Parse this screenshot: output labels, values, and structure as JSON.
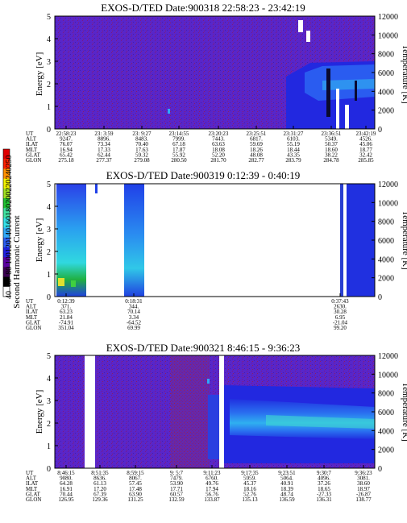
{
  "colorbar": {
    "label": "Second Harmonic Current",
    "ticks": [
      "40",
      "60",
      "80",
      "100",
      "120",
      "140",
      "160",
      "180",
      "200",
      "220",
      "240",
      "250"
    ],
    "colors": [
      "#ffffff",
      "#000000",
      "#3a0050",
      "#5a00a0",
      "#2020e0",
      "#2a5cf0",
      "#2fa8f8",
      "#33e0e8",
      "#40e0a0",
      "#20c030",
      "#a0e020",
      "#f0f000",
      "#ff9000",
      "#ff2000",
      "#e00000"
    ]
  },
  "panels": [
    {
      "title": "EXOS-D/TED   Date:900318   22:58:23 - 23:42:19",
      "ylabel_left": "Energy [eV]",
      "ylabel_right": "Temperature [K]",
      "ylim": [
        0,
        5
      ],
      "y_ticks": [
        "0",
        "1",
        "2",
        "3",
        "4",
        "5"
      ],
      "y2lim": [
        0,
        12000
      ],
      "y2_ticks": [
        "0",
        "2000",
        "4000",
        "6000",
        "8000",
        "10000",
        "12000"
      ],
      "orbit": {
        "row_labels": [
          "UT",
          "ALT",
          "ILAT",
          "MLT",
          "GLAT",
          "GLON"
        ],
        "columns": [
          [
            "22:58:23",
            "9247.",
            "76.07",
            "16.94",
            "65.42",
            "275.18"
          ],
          [
            "23: 3:59",
            "8896.",
            "73.34",
            "17.33",
            "62.44",
            "277.37"
          ],
          [
            "23: 9:27",
            "8483.",
            "70.40",
            "17.63",
            "59.32",
            "279.08"
          ],
          [
            "23:14:55",
            "7999.",
            "67.18",
            "17.87",
            "55.92",
            "280.50"
          ],
          [
            "23:20:23",
            "7443.",
            "63.63",
            "18.08",
            "52.20",
            "281.70"
          ],
          [
            "23:25:51",
            "6817.",
            "59.69",
            "18.26",
            "48.08",
            "282.77"
          ],
          [
            "23:31:27",
            "6103.",
            "55.19",
            "18.44",
            "43.35",
            "283.79"
          ],
          [
            "23:36:51",
            "5349.",
            "50.37",
            "18.60",
            "38.22",
            "284.78"
          ],
          [
            "23:42:19",
            "4526.",
            "45.06",
            "18.77",
            "32.42",
            "285.85"
          ]
        ]
      }
    },
    {
      "title": "EXOS-D/TED   Date:900319   0:12:39 - 0:40:19",
      "ylabel_left": "Energy [eV]",
      "ylabel_right": "Temperature [K]",
      "ylim": [
        0,
        5
      ],
      "y_ticks": [
        "0",
        "1",
        "2",
        "3",
        "4",
        "5"
      ],
      "y2lim": [
        0,
        12000
      ],
      "y2_ticks": [
        "0",
        "2000",
        "4000",
        "6000",
        "8000",
        "10000",
        "12000"
      ],
      "orbit": {
        "row_labels": [
          "UT",
          "ALT",
          "ILAT",
          "MLT",
          "GLAT",
          "GLON"
        ],
        "columns": [
          [
            "0:12:39",
            "371.",
            "63.23",
            "21.84",
            "-74.91",
            "351.04"
          ],
          [
            "0:18:31",
            "344.",
            "70.14",
            "3.34",
            "-64.52",
            "69.99"
          ],
          [
            "0:37:43",
            "2630.",
            "30.28",
            "6.95",
            "-21.04",
            "99.20"
          ]
        ]
      }
    },
    {
      "title": "EXOS-D/TED   Date:900321   8:46:15 - 9:36:23",
      "ylabel_left": "Energy [eV]",
      "ylabel_right": "Temperature [K]",
      "ylim": [
        0,
        5
      ],
      "y_ticks": [
        "0",
        "1",
        "2",
        "3",
        "4",
        "5"
      ],
      "y2lim": [
        0,
        12000
      ],
      "y2_ticks": [
        "0",
        "2000",
        "4000",
        "6000",
        "8000",
        "10000",
        "12000"
      ],
      "orbit": {
        "row_labels": [
          "UT",
          "ALT",
          "ILAT",
          "MLT",
          "GLAT",
          "GLON"
        ],
        "columns": [
          [
            "8:46:15",
            "9080.",
            "64.28",
            "16.91",
            "70.44",
            "126.95"
          ],
          [
            "8:51:35",
            "8636.",
            "61.13",
            "17.20",
            "67.39",
            "129.36"
          ],
          [
            "8:59:15",
            "8067.",
            "57.45",
            "17.48",
            "63.90",
            "131.25"
          ],
          [
            "9: 5:7",
            "7479.",
            "53.90",
            "17.71",
            "60.57",
            "132.59"
          ],
          [
            "9:11:23",
            "6760.",
            "49.76",
            "17.94",
            "56.76",
            "133.87"
          ],
          [
            "9:17:35",
            "5959.",
            "45.37",
            "18.16",
            "52.76",
            "135.13"
          ],
          [
            "9:23:51",
            "5064.",
            "40.91",
            "18.39",
            "48.74",
            "136.59"
          ],
          [
            "9:30:7",
            "4096.",
            "37.26",
            "18.65",
            "-27.33",
            "136.31"
          ],
          [
            "9:36:23",
            "3081.",
            "38.60",
            "18.97",
            "-26.87",
            "138.77"
          ]
        ]
      }
    }
  ],
  "chart_data": [
    {
      "type": "heatmap",
      "title": "EXOS-D/TED   Date:900318   22:58:23 - 23:42:19",
      "xlabel": "UT",
      "ylabel": "Energy [eV]",
      "y2label": "Temperature [K]",
      "x_ticks": [
        "22:58:23",
        "23: 3:59",
        "23: 9:27",
        "23:14:55",
        "23:20:23",
        "23:25:51",
        "23:31:27",
        "23:36:51",
        "23:42:19"
      ],
      "ylim": [
        0,
        5
      ],
      "y2lim": [
        0,
        12000
      ],
      "background_level": "purple",
      "features": [
        {
          "from": "23:29:00",
          "to": "23:42:19",
          "energy": [
            0,
            3.3
          ],
          "level": "blue",
          "note": "ion temperature band rising toward end"
        },
        {
          "from": "23:36:51",
          "to": "23:42:19",
          "energy": [
            0,
            1.5
          ],
          "level": "white",
          "note": "data gaps"
        }
      ]
    },
    {
      "type": "heatmap",
      "title": "EXOS-D/TED   Date:900319   0:12:39 - 0:40:19",
      "xlabel": "UT",
      "ylabel": "Energy [eV]",
      "y2label": "Temperature [K]",
      "x_ticks": [
        "0:12:39",
        "0:18:31",
        "0:37:43"
      ],
      "ylim": [
        0,
        5
      ],
      "y2lim": [
        0,
        12000
      ],
      "segments": [
        {
          "from": "0:12:39",
          "to": "0:15:15",
          "level": "blue-green"
        },
        {
          "from": "0:18:00",
          "to": "0:20:30",
          "level": "blue-cyan"
        },
        {
          "from": "0:37:40",
          "to": "0:40:19",
          "level": "blue"
        }
      ]
    },
    {
      "type": "heatmap",
      "title": "EXOS-D/TED   Date:900321   8:46:15 - 9:36:23",
      "xlabel": "UT",
      "ylabel": "Energy [eV]",
      "y2label": "Temperature [K]",
      "x_ticks": [
        "8:46:15",
        "8:51:35",
        "8:59:15",
        "9: 5:7",
        "9:11:23",
        "9:17:35",
        "9:23:51",
        "9:30:7",
        "9:36:23"
      ],
      "ylim": [
        0,
        5
      ],
      "y2lim": [
        0,
        12000
      ],
      "background_level": "purple",
      "features": [
        {
          "from": "9:13:00",
          "to": "9:36:23",
          "energy": [
            1.0,
            3.5
          ],
          "level": "blue-cyan",
          "note": "temperature band near 6000 K"
        }
      ]
    }
  ]
}
